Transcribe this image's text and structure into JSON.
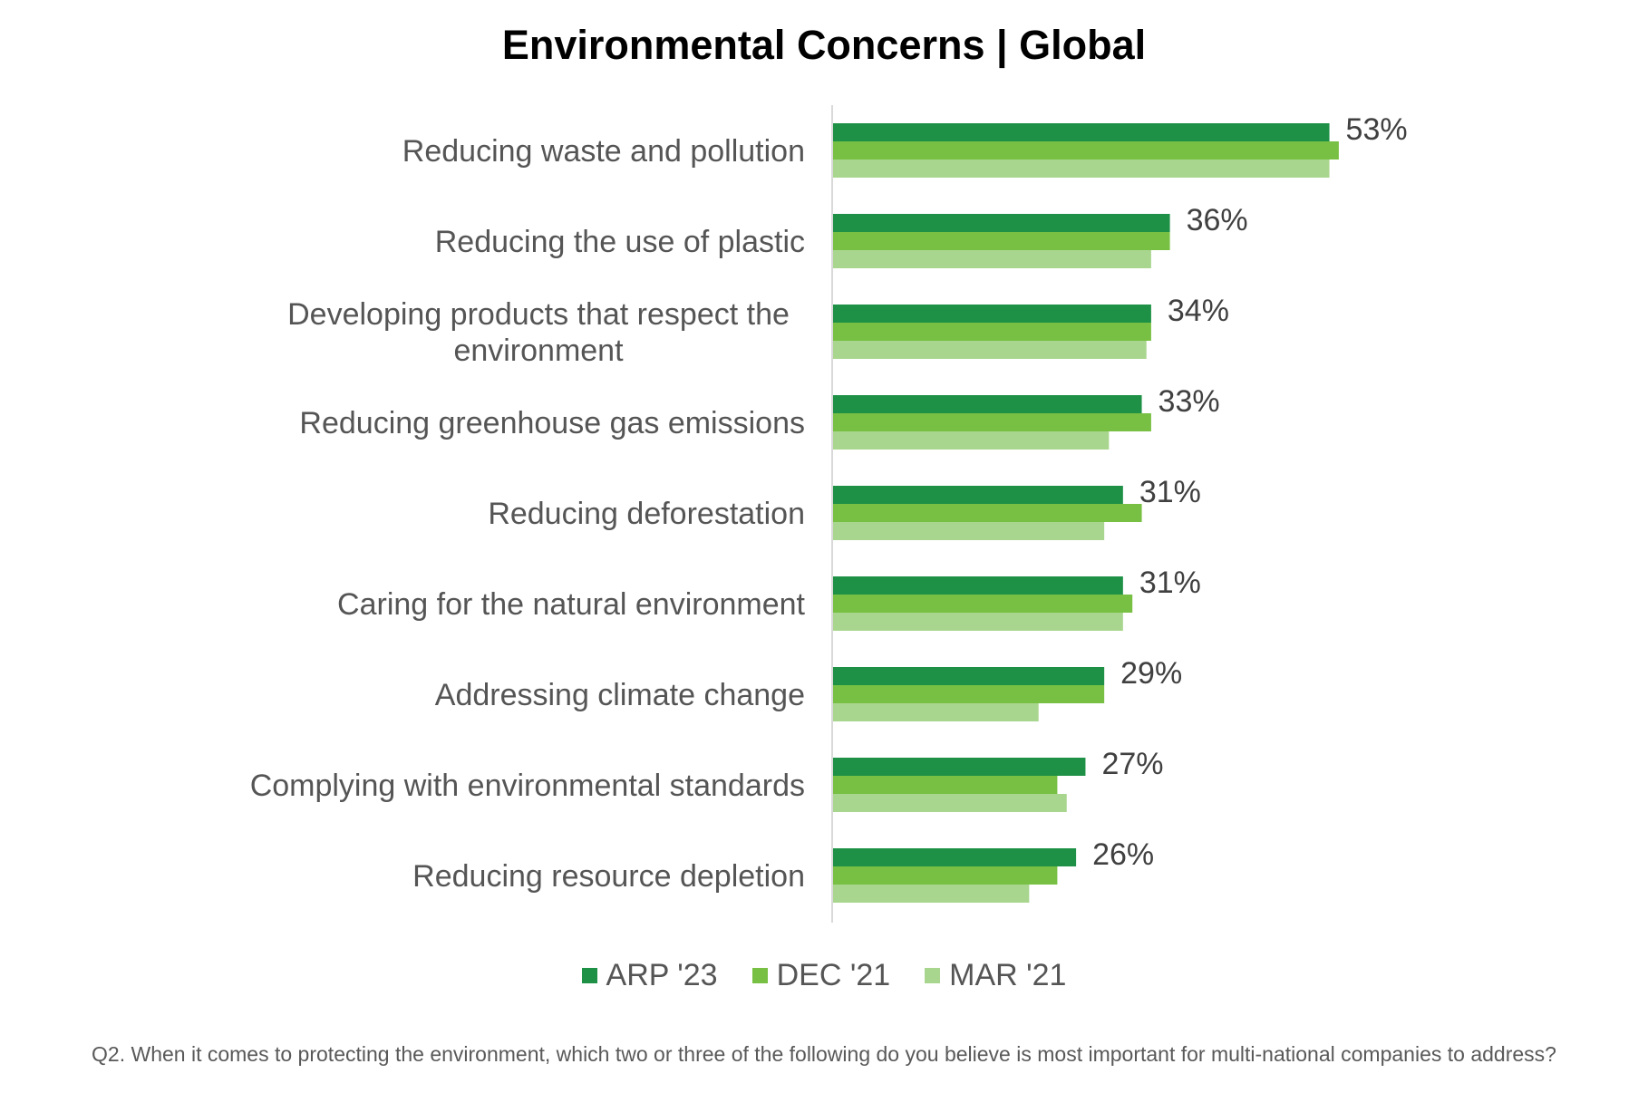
{
  "chart_data": {
    "type": "bar",
    "orientation": "horizontal",
    "title": "Environmental Concerns | Global",
    "categories": [
      [
        "Reducing waste and pollution"
      ],
      [
        "Reducing the use of plastic"
      ],
      [
        "Developing products that respect the",
        "environment"
      ],
      [
        "Reducing greenhouse gas emissions"
      ],
      [
        "Reducing deforestation"
      ],
      [
        "Caring for the natural environment"
      ],
      [
        "Addressing climate change"
      ],
      [
        "Complying with environmental standards"
      ],
      [
        "Reducing resource depletion"
      ]
    ],
    "series": [
      {
        "name": "ARP '23",
        "color": "#1e9146",
        "values": [
          53,
          36,
          34,
          33,
          31,
          31,
          29,
          27,
          26
        ]
      },
      {
        "name": "DEC '21",
        "color": "#77c043",
        "values": [
          54,
          36,
          34,
          34,
          33,
          32,
          29,
          24,
          24
        ]
      },
      {
        "name": "MAR '21",
        "color": "#a9d68f",
        "values": [
          53,
          34,
          33.5,
          29.5,
          29,
          31,
          22,
          25,
          21
        ]
      }
    ],
    "data_labels": [
      "53%",
      "36%",
      "34%",
      "33%",
      "31%",
      "31%",
      "29%",
      "27%",
      "26%"
    ],
    "xlim": [
      0,
      60
    ],
    "legend": "bottom",
    "grid": false
  },
  "footnote": "Q2. When it comes to protecting the environment, which two or three of the following do you believe is most important for multi-national companies to address?"
}
